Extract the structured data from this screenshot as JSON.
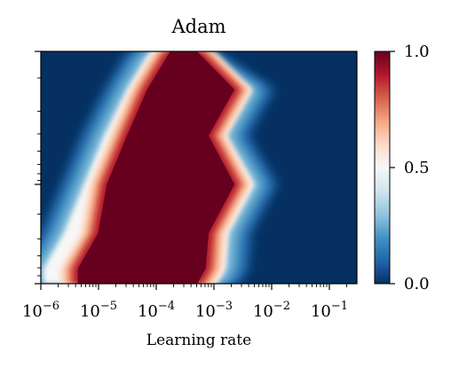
{
  "chart_data": {
    "type": "heatmap",
    "subtype": "filled-contour",
    "title": "Adam",
    "xlabel": "Learning rate",
    "ylabel": "",
    "xscale": "log",
    "yscale": "log",
    "xlim": [
      1e-06,
      0.3
    ],
    "x_ticks": [
      {
        "value": 1e-06,
        "base": "10",
        "exp": "−6"
      },
      {
        "value": 1e-05,
        "base": "10",
        "exp": "−5"
      },
      {
        "value": 0.0001,
        "base": "10",
        "exp": "−4"
      },
      {
        "value": 0.001,
        "base": "10",
        "exp": "−3"
      },
      {
        "value": 0.01,
        "base": "10",
        "exp": "−2"
      },
      {
        "value": 0.1,
        "base": "10",
        "exp": "−1"
      }
    ],
    "y_ticks_labeled": false,
    "colormap": "RdBu_r",
    "colorbar": {
      "min": 0.0,
      "max": 1.0,
      "ticks": [
        {
          "value": 1.0,
          "label": "1.0"
        },
        {
          "value": 0.5,
          "label": "0.5"
        },
        {
          "value": 0.0,
          "label": "0.0"
        }
      ]
    },
    "regions": [
      {
        "level": 0.5,
        "note": "white boundary band",
        "contour_x_log10": [
          [
            -3.35,
            -2.35,
            -2.8,
            -2.3,
            -2.75,
            -2.8,
            -2.95
          ],
          [
            -4.1,
            -4.5,
            -4.9,
            -5.25,
            -5.6,
            -5.95,
            -5.95
          ]
        ]
      },
      {
        "level": 0.95,
        "note": "dark red core",
        "contour_x_log10": [
          [
            -3.2,
            -2.55,
            -3.0,
            -2.55,
            -3.0,
            -3.05,
            -3.2
          ],
          [
            -3.85,
            -4.25,
            -4.6,
            -4.95,
            -5.1,
            -5.45,
            -5.45
          ]
        ]
      }
    ]
  },
  "colors": {
    "low": "#053061",
    "mid": "#f7f7f7",
    "high": "#67001f"
  }
}
